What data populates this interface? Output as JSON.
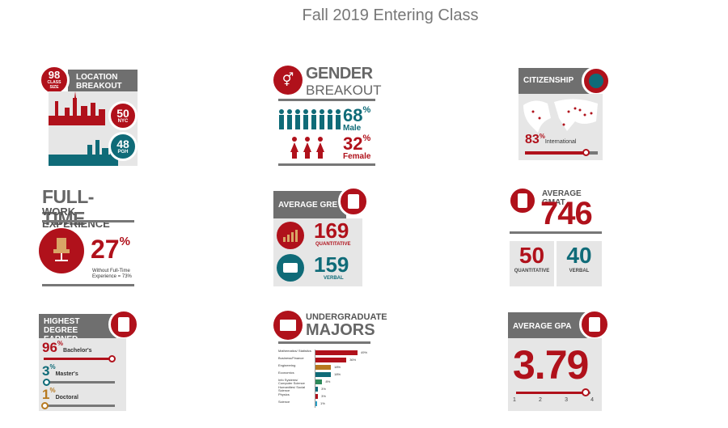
{
  "page": {
    "title": "Fall 2019 Entering Class"
  },
  "location": {
    "class_size_value": "98",
    "class_size_label": "CLASS SIZE",
    "header": "LOCATION BREAKOUT",
    "nyc_value": "50",
    "nyc_label": "NYC",
    "pgh_value": "48",
    "pgh_label": "PGH"
  },
  "gender": {
    "header_line1": "GENDER",
    "header_line2": "BREAKOUT",
    "male_value": "68",
    "male_suffix": "%",
    "male_label": "Male",
    "female_value": "32",
    "female_suffix": "%",
    "female_label": "Female"
  },
  "citizenship": {
    "header": "CITIZENSHIP",
    "international_value": "83",
    "international_suffix": "%",
    "international_label": "International",
    "slider_fraction": 0.83
  },
  "work": {
    "header_line1": "FULL-TIME",
    "header_line2": "WORK EXPERIENCE",
    "value": "27",
    "suffix": "%",
    "note_line1": "Without Full-Time",
    "note_line2": "Experience = 73%"
  },
  "gre": {
    "header": "AVERAGE GRE",
    "quant_value": "169",
    "quant_label": "QUANTITATIVE",
    "verbal_value": "159",
    "verbal_label": "VERBAL"
  },
  "gmat": {
    "header": "AVERAGE GMAT",
    "value": "746",
    "quant_value": "50",
    "quant_label": "QUANTITATIVE",
    "verbal_value": "40",
    "verbal_label": "VERBAL"
  },
  "degree": {
    "header_line1": "HIGHEST DEGREE",
    "header_line2": "EARNED",
    "items": [
      {
        "value": "96",
        "suffix": "%",
        "label": "Bachelor's",
        "fraction": 0.96,
        "color": "#b0111b"
      },
      {
        "value": "3",
        "suffix": "%",
        "label": "Master's",
        "fraction": 0.03,
        "color": "#0f6b78"
      },
      {
        "value": "1",
        "suffix": "%",
        "label": "Doctoral",
        "fraction": 0.01,
        "color": "#b7791f"
      }
    ]
  },
  "majors": {
    "header_line1": "UNDERGRADUATE",
    "header_line2": "MAJORS",
    "items": [
      {
        "label": "Mathematics/ Statistics",
        "pct": "49%",
        "value": 49,
        "color": "#b0111b"
      },
      {
        "label": "Business/Finance",
        "pct": "36%",
        "value": 36,
        "color": "#b0111b"
      },
      {
        "label": "Engineering",
        "pct": "18%",
        "value": 18,
        "color": "#b7791f"
      },
      {
        "label": "Economics",
        "pct": "18%",
        "value": 18,
        "color": "#0f6b78"
      },
      {
        "label": "Info Systems/ Computer Science",
        "pct": "8%",
        "value": 8,
        "color": "#2e8a5b"
      },
      {
        "label": "Humanities/ Social Science",
        "pct": "3%",
        "value": 3,
        "color": "#0f6b78"
      },
      {
        "label": "Physics",
        "pct": "3%",
        "value": 3,
        "color": "#b0111b"
      },
      {
        "label": "Science",
        "pct": "1%",
        "value": 1,
        "color": "#2aa0c8"
      }
    ]
  },
  "gpa": {
    "header": "AVERAGE GPA",
    "value": "3.79",
    "scale": [
      "1",
      "2",
      "3",
      "4"
    ],
    "slider_fraction": 0.93
  }
}
